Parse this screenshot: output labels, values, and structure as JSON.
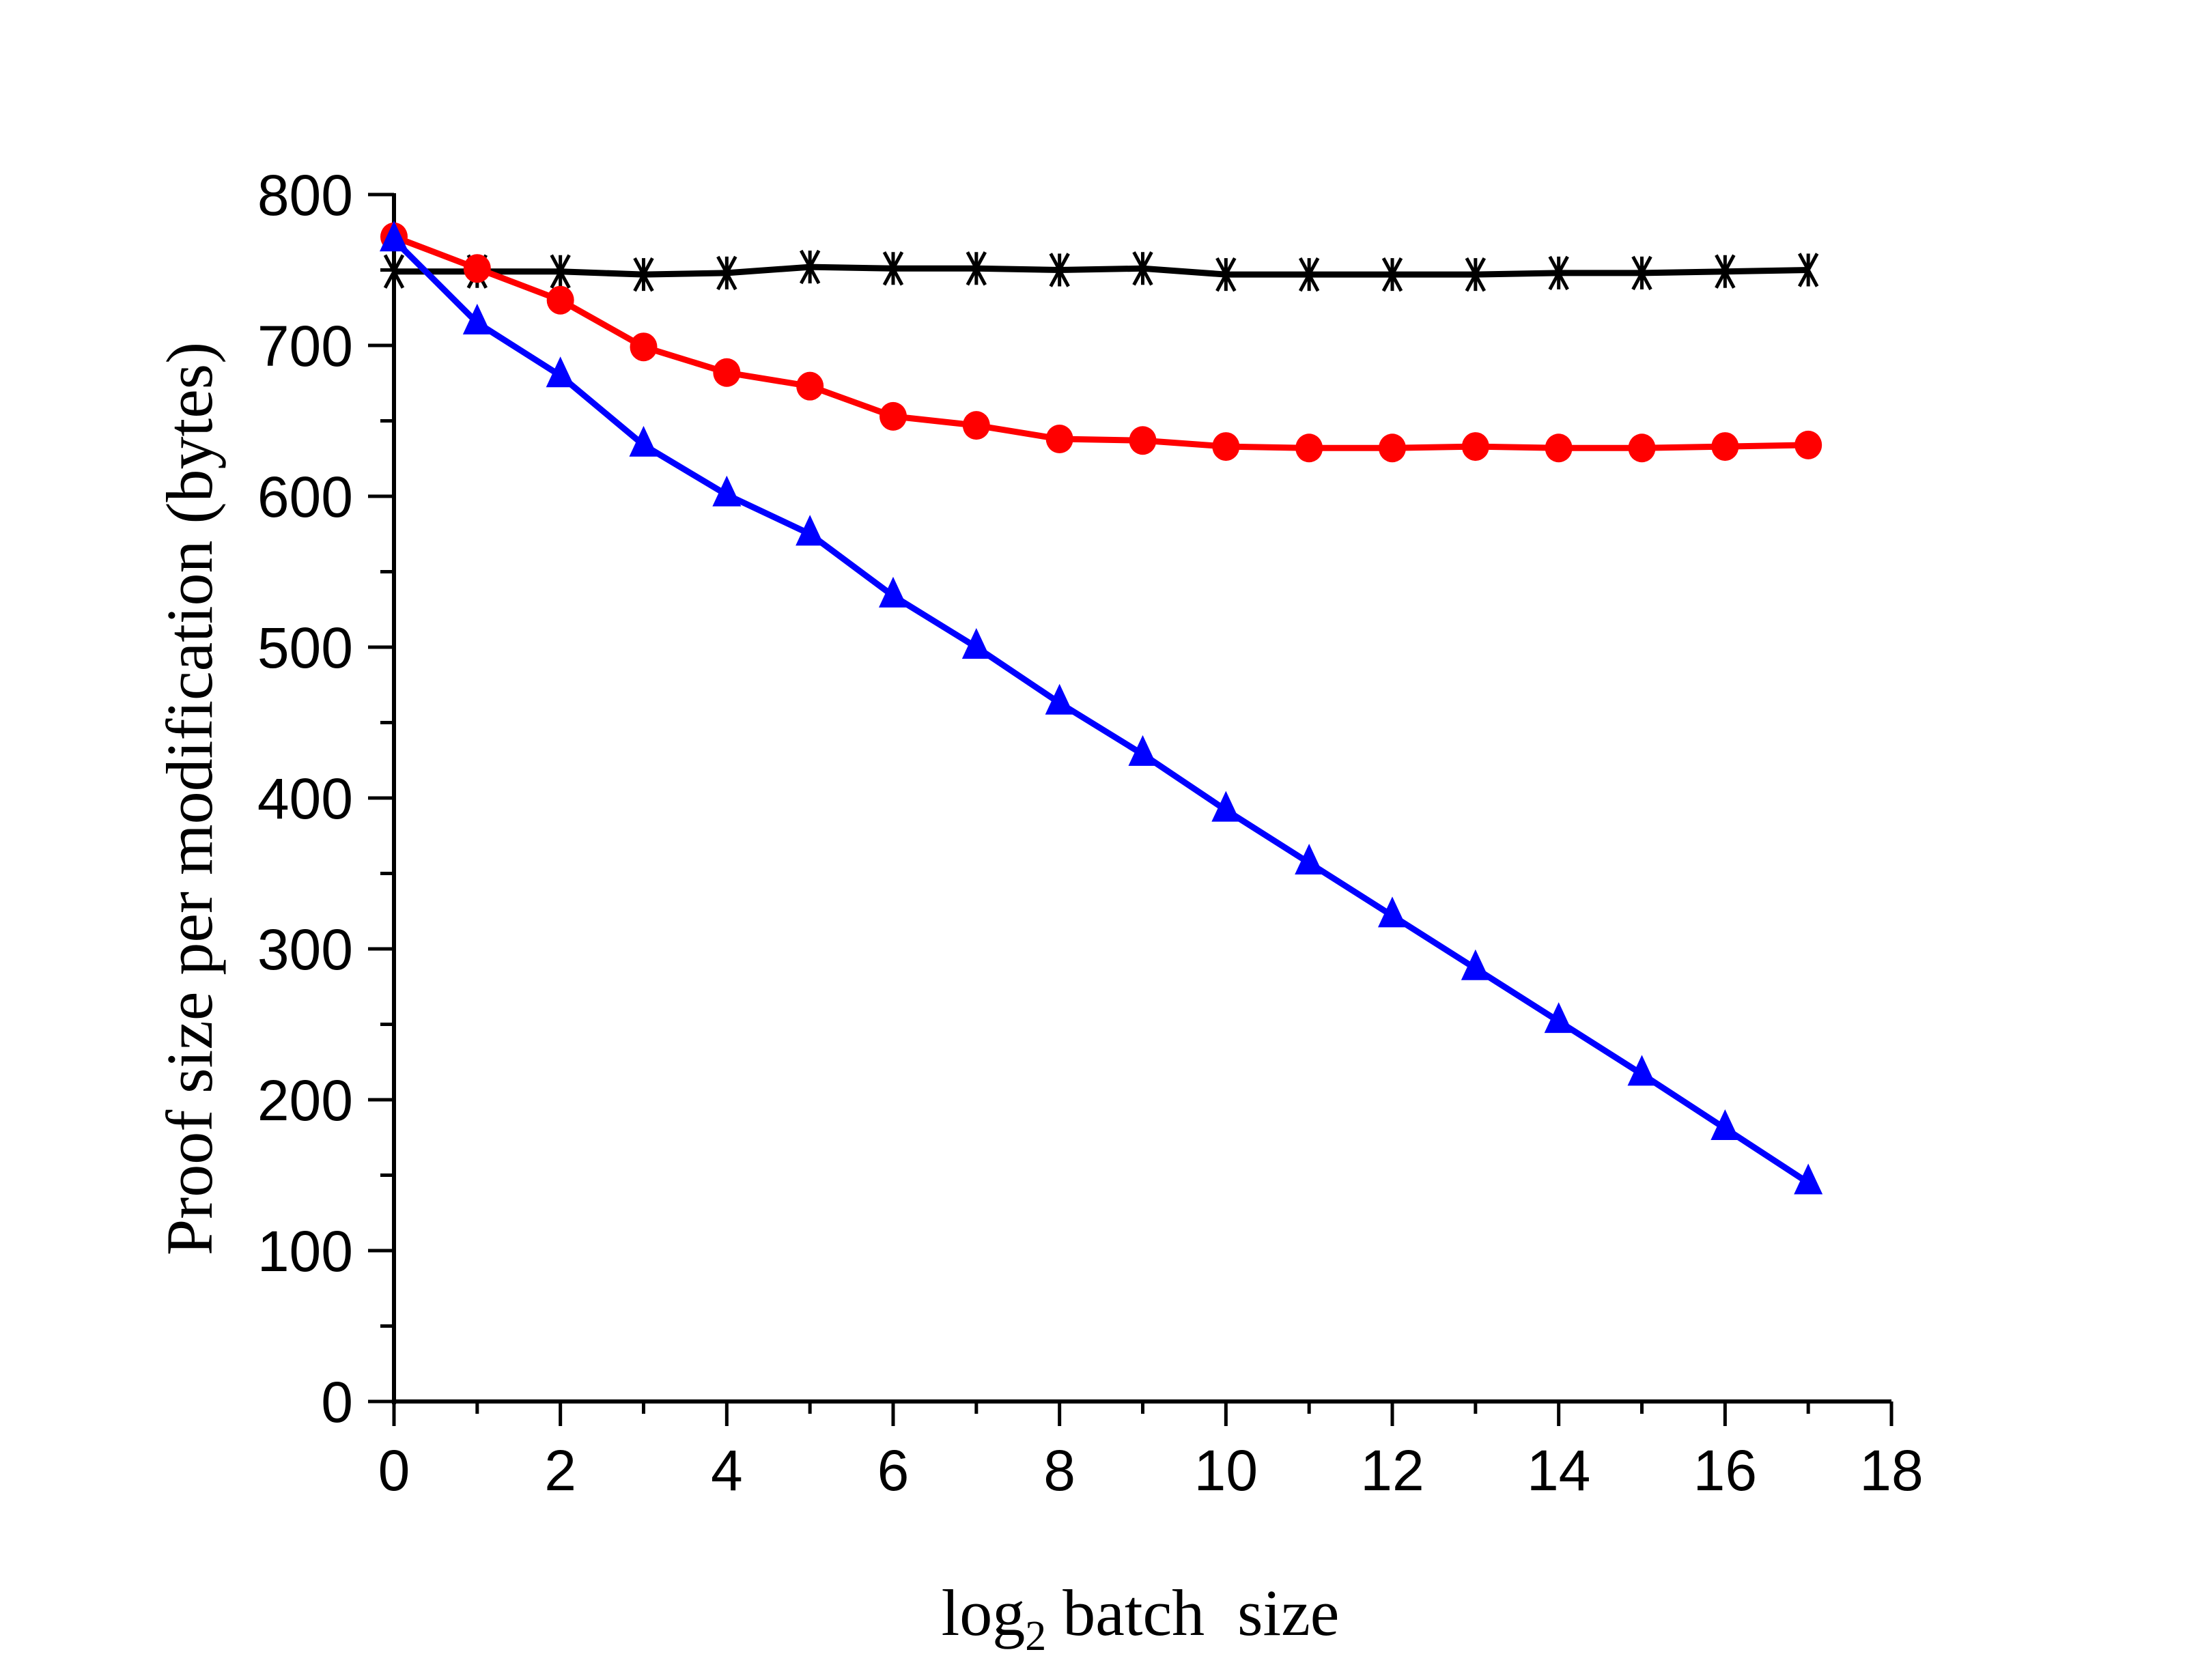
{
  "chart_data": {
    "type": "line",
    "title": "",
    "xlabel": "log2 batch  size",
    "xlabel_parts": {
      "pre": "log",
      "sub": "2",
      "post": " batch  size"
    },
    "ylabel": "Proof size per modification (bytes)",
    "xlim": [
      0,
      18
    ],
    "ylim": [
      0,
      800
    ],
    "x_ticks": [
      0,
      2,
      4,
      6,
      8,
      10,
      12,
      14,
      16,
      18
    ],
    "y_ticks": [
      0,
      100,
      200,
      300,
      400,
      500,
      600,
      700,
      800
    ],
    "grid": false,
    "legend": null,
    "x": [
      0,
      1,
      2,
      3,
      4,
      5,
      6,
      7,
      8,
      9,
      10,
      11,
      12,
      13,
      14,
      15,
      16,
      17
    ],
    "series": [
      {
        "name": "black-asterisk",
        "color": "#000000",
        "marker": "asterisk",
        "values": [
          749,
          749,
          749,
          747,
          748,
          752,
          751,
          751,
          750,
          751,
          747,
          747,
          747,
          747,
          748,
          748,
          749,
          750
        ]
      },
      {
        "name": "red-circle",
        "color": "#ff0000",
        "marker": "circle",
        "values": [
          772,
          751,
          730,
          699,
          682,
          673,
          653,
          647,
          638,
          637,
          633,
          632,
          632,
          633,
          632,
          632,
          633,
          634
        ]
      },
      {
        "name": "blue-triangle",
        "color": "#0000ff",
        "marker": "triangle",
        "values": [
          770,
          715,
          680,
          634,
          601,
          575,
          534,
          500,
          463,
          429,
          392,
          357,
          322,
          287,
          252,
          217,
          181,
          145
        ]
      }
    ]
  }
}
